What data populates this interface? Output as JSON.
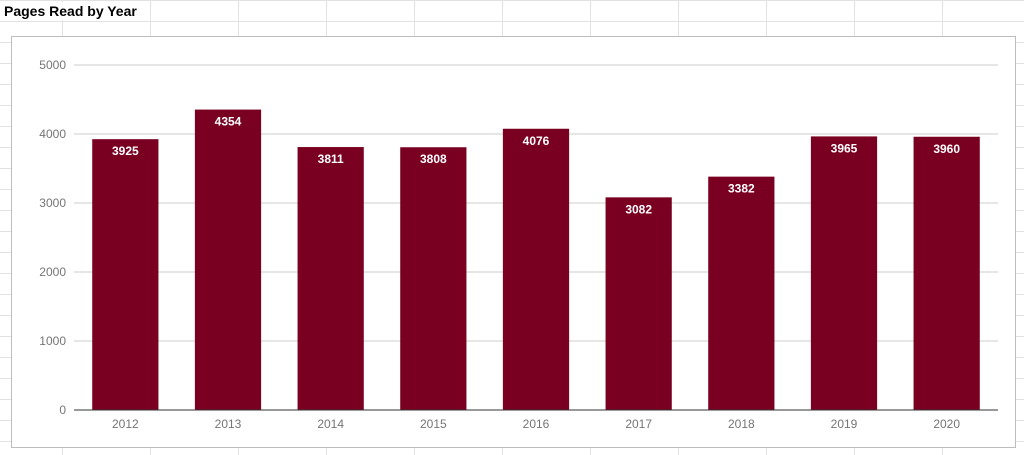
{
  "sheet": {
    "title": "Pages Read by Year"
  },
  "chart_data": {
    "type": "bar",
    "title": "",
    "xlabel": "",
    "ylabel": "",
    "categories": [
      "2012",
      "2013",
      "2014",
      "2015",
      "2016",
      "2017",
      "2018",
      "2019",
      "2020"
    ],
    "values": [
      3925,
      4354,
      3811,
      3808,
      4076,
      3082,
      3382,
      3965,
      3960
    ],
    "ylim": [
      0,
      5000
    ],
    "yticks": [
      "0",
      "1000",
      "2000",
      "3000",
      "4000",
      "5000"
    ],
    "grid": true,
    "data_labels": true,
    "legend": "none",
    "bar_color": "#7a0021",
    "label_color": "#ffffff",
    "gridline_color": "#cccccc",
    "axis_text_color": "#757575"
  }
}
